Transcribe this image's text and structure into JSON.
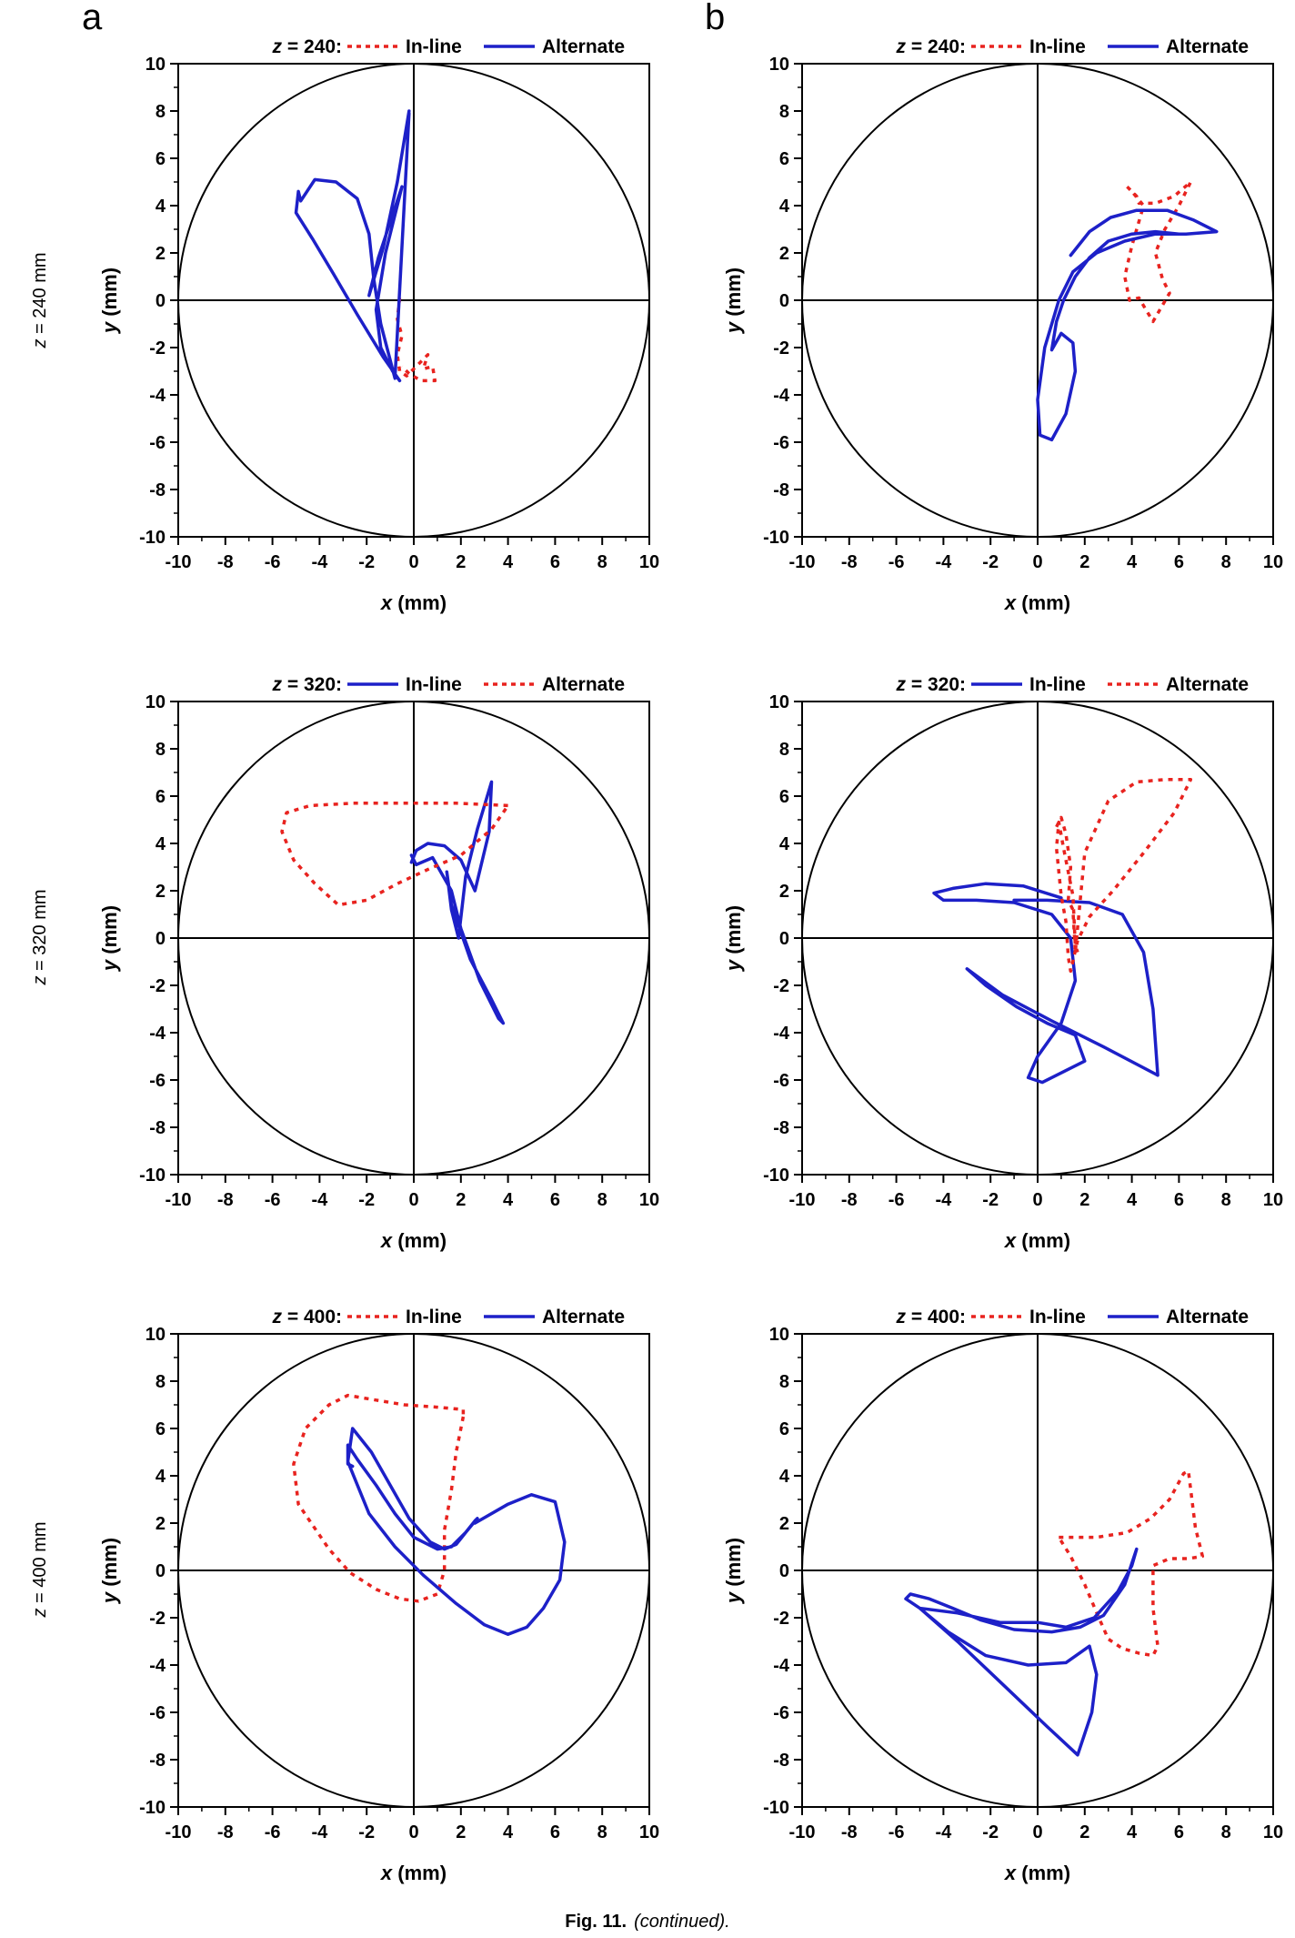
{
  "panel_letters": [
    "a",
    "b"
  ],
  "row_labels": [
    {
      "var": "z",
      "rest": " = 240 mm"
    },
    {
      "var": "z",
      "rest": " = 320 mm"
    },
    {
      "var": "z",
      "rest": " = 400 mm"
    }
  ],
  "caption": {
    "bold": "Fig. 11.",
    "italic": "(continued)."
  },
  "colors": {
    "inline_dotted": "#e8231f",
    "alternate_solid": "#1d20c8",
    "axes": "#000000"
  },
  "chart_data": [
    {
      "type": "line",
      "column": "a",
      "legend": {
        "prefix_var": "z",
        "prefix_rest": " = 240:",
        "entries": [
          {
            "label": "In-line",
            "style": "dotted",
            "color": "#e8231f"
          },
          {
            "label": "Alternate",
            "style": "solid",
            "color": "#1d20c8"
          }
        ]
      },
      "xlabel": {
        "var": "x",
        "unit": " (mm)"
      },
      "ylabel": {
        "var": "y",
        "unit": " (mm)"
      },
      "xlim": [
        -10,
        10
      ],
      "ylim": [
        -10,
        10
      ],
      "xticks": [
        "-10",
        "-8",
        "-6",
        "-4",
        "-2",
        "0",
        "2",
        "4",
        "6",
        "8",
        "10"
      ],
      "yticks": [
        "-10",
        "-8",
        "-6",
        "-4",
        "-2",
        "0",
        "2",
        "4",
        "6",
        "8",
        "10"
      ],
      "boundary_circle_radius": 10,
      "series": [
        {
          "name": "In-line",
          "style": "dotted",
          "color": "#e8231f",
          "x": [
            -0.6,
            -0.7,
            -0.5,
            -0.7,
            -0.6,
            -0.3,
            0.2,
            0.6,
            0.4,
            0.8,
            0.9,
            0.3,
            -0.2,
            -0.5
          ],
          "y": [
            0.1,
            -0.8,
            -1.5,
            -2.3,
            -3.0,
            -3.2,
            -2.7,
            -2.3,
            -2.9,
            -2.8,
            -3.4,
            -3.4,
            -3.1,
            -2.8
          ]
        },
        {
          "name": "Alternate",
          "style": "solid",
          "color": "#1d20c8",
          "x": [
            -0.2,
            -0.7,
            -1.3,
            -1.9,
            -1.5,
            -0.5,
            -1.2,
            -1.6,
            -1.4,
            -0.9,
            -0.6,
            -1.3,
            -2.4,
            -3.4,
            -4.3,
            -5.0,
            -4.9,
            -4.8,
            -4.2,
            -3.3,
            -2.4,
            -1.9,
            -1.7,
            -1.4,
            -0.8,
            -0.2
          ],
          "y": [
            8.0,
            5.0,
            2.2,
            0.2,
            1.8,
            4.8,
            2.0,
            -0.4,
            -2.0,
            -3.0,
            -3.4,
            -2.4,
            -0.6,
            1.1,
            2.6,
            3.7,
            4.6,
            4.2,
            5.1,
            5.0,
            4.3,
            2.8,
            0.9,
            -1.0,
            -3.3,
            7.9
          ]
        }
      ]
    },
    {
      "type": "line",
      "column": "b",
      "legend": {
        "prefix_var": "z",
        "prefix_rest": " = 240:",
        "entries": [
          {
            "label": "In-line",
            "style": "dotted",
            "color": "#e8231f"
          },
          {
            "label": "Alternate",
            "style": "solid",
            "color": "#1d20c8"
          }
        ]
      },
      "xlabel": {
        "var": "x",
        "unit": " (mm)"
      },
      "ylabel": {
        "var": "y",
        "unit": " (mm)"
      },
      "xlim": [
        -10,
        10
      ],
      "ylim": [
        -10,
        10
      ],
      "xticks": [
        "-10",
        "-8",
        "-6",
        "-4",
        "-2",
        "0",
        "2",
        "4",
        "6",
        "8",
        "10"
      ],
      "yticks": [
        "-10",
        "-8",
        "-6",
        "-4",
        "-2",
        "0",
        "2",
        "4",
        "6",
        "8",
        "10"
      ],
      "boundary_circle_radius": 10,
      "series": [
        {
          "name": "In-line",
          "style": "dotted",
          "color": "#e8231f",
          "x": [
            3.8,
            4.2,
            4.3,
            5.0,
            5.8,
            6.5,
            6.0,
            5.4,
            5.0,
            5.3,
            5.6,
            4.9,
            4.6,
            4.3,
            3.9,
            3.7,
            4.0,
            4.5,
            4.0
          ],
          "y": [
            4.8,
            4.4,
            4.1,
            4.1,
            4.4,
            5.0,
            4.0,
            3.0,
            2.0,
            0.9,
            0.3,
            -0.9,
            -0.4,
            0.1,
            0.0,
            1.0,
            2.3,
            4.0,
            4.6
          ]
        },
        {
          "name": "Alternate",
          "style": "solid",
          "color": "#1d20c8",
          "x": [
            1.4,
            2.2,
            3.1,
            4.2,
            5.5,
            6.6,
            7.6,
            6.3,
            5.0,
            3.7,
            2.5,
            1.5,
            0.9,
            0.3,
            0.0,
            0.1,
            0.6,
            1.2,
            1.6,
            1.5,
            1.0,
            0.6,
            0.8,
            1.1,
            1.6,
            2.2,
            3.0,
            4.0,
            5.0,
            6.0
          ],
          "y": [
            1.9,
            2.9,
            3.5,
            3.8,
            3.8,
            3.4,
            2.9,
            2.8,
            2.8,
            2.5,
            2.0,
            1.2,
            0.0,
            -2.0,
            -4.2,
            -5.7,
            -5.9,
            -4.8,
            -3.0,
            -1.8,
            -1.4,
            -2.1,
            -0.9,
            0.0,
            1.0,
            1.8,
            2.5,
            2.8,
            2.9,
            2.8
          ]
        }
      ]
    },
    {
      "type": "line",
      "column": "a",
      "legend": {
        "prefix_var": "z",
        "prefix_rest": " = 320:",
        "entries": [
          {
            "label": "In-line",
            "style": "solid",
            "color": "#1d20c8"
          },
          {
            "label": "Alternate",
            "style": "dotted",
            "color": "#e8231f"
          }
        ]
      },
      "xlabel": {
        "var": "x",
        "unit": " (mm)"
      },
      "ylabel": {
        "var": "y",
        "unit": " (mm)"
      },
      "xlim": [
        -10,
        10
      ],
      "ylim": [
        -10,
        10
      ],
      "xticks": [
        "-10",
        "-8",
        "-6",
        "-4",
        "-2",
        "0",
        "2",
        "4",
        "6",
        "8",
        "10"
      ],
      "yticks": [
        "-10",
        "-8",
        "-6",
        "-4",
        "-2",
        "0",
        "2",
        "4",
        "6",
        "8",
        "10"
      ],
      "boundary_circle_radius": 10,
      "series": [
        {
          "name": "In-line",
          "style": "solid",
          "color": "#1d20c8",
          "x": [
            -0.1,
            0.1,
            0.6,
            1.3,
            2.0,
            2.6,
            3.2,
            3.3,
            2.7,
            2.2,
            1.9,
            1.6,
            1.4,
            1.6,
            2.4,
            3.3,
            3.8,
            3.6,
            2.8,
            2.0,
            1.6,
            0.8,
            0.1,
            -0.1
          ],
          "y": [
            3.2,
            3.7,
            4.0,
            3.9,
            3.3,
            2.0,
            4.5,
            6.6,
            4.6,
            2.6,
            0.0,
            1.2,
            2.8,
            1.4,
            -0.9,
            -2.6,
            -3.6,
            -3.4,
            -1.8,
            0.4,
            2.0,
            3.4,
            3.1,
            3.5
          ]
        },
        {
          "name": "Alternate",
          "style": "dotted",
          "color": "#e8231f",
          "x": [
            4.0,
            1.8,
            -0.4,
            -2.6,
            -4.4,
            -5.4,
            -5.6,
            -5.1,
            -4.2,
            -3.2,
            -2.0,
            -0.7,
            0.6,
            2.0,
            3.3,
            4.0
          ],
          "y": [
            5.6,
            5.7,
            5.7,
            5.7,
            5.6,
            5.3,
            4.5,
            3.3,
            2.3,
            1.4,
            1.6,
            2.3,
            2.9,
            3.5,
            4.6,
            5.6
          ]
        }
      ]
    },
    {
      "type": "line",
      "column": "b",
      "legend": {
        "prefix_var": "z",
        "prefix_rest": " = 320:",
        "entries": [
          {
            "label": "In-line",
            "style": "solid",
            "color": "#1d20c8"
          },
          {
            "label": "Alternate",
            "style": "dotted",
            "color": "#e8231f"
          }
        ]
      },
      "xlabel": {
        "var": "x",
        "unit": " (mm)"
      },
      "ylabel": {
        "var": "y",
        "unit": " (mm)"
      },
      "xlim": [
        -10,
        10
      ],
      "ylim": [
        -10,
        10
      ],
      "xticks": [
        "-10",
        "-8",
        "-6",
        "-4",
        "-2",
        "0",
        "2",
        "4",
        "6",
        "8",
        "10"
      ],
      "yticks": [
        "-10",
        "-8",
        "-6",
        "-4",
        "-2",
        "0",
        "2",
        "4",
        "6",
        "8",
        "10"
      ],
      "boundary_circle_radius": 10,
      "series": [
        {
          "name": "In-line",
          "style": "solid",
          "color": "#1d20c8",
          "x": [
            1.0,
            -0.6,
            -2.2,
            -3.6,
            -4.4,
            -4.0,
            -2.6,
            -1.0,
            0.6,
            1.4,
            1.6,
            1.0,
            0.0,
            -0.4,
            0.2,
            1.2,
            2.0,
            1.6,
            0.4,
            -0.9,
            -2.2,
            -3.0,
            -1.5,
            0.6,
            2.8,
            5.1,
            4.9,
            4.5,
            3.6,
            2.2,
            0.4,
            -1.0
          ],
          "y": [
            1.7,
            2.2,
            2.3,
            2.1,
            1.9,
            1.6,
            1.6,
            1.5,
            1.0,
            0.0,
            -1.8,
            -3.6,
            -5.0,
            -5.9,
            -6.1,
            -5.6,
            -5.2,
            -4.1,
            -3.6,
            -2.9,
            -2.0,
            -1.3,
            -2.4,
            -3.5,
            -4.6,
            -5.8,
            -3.0,
            -0.6,
            1.0,
            1.5,
            1.6,
            1.6
          ]
        },
        {
          "name": "Alternate",
          "style": "dotted",
          "color": "#e8231f",
          "x": [
            0.8,
            1.0,
            1.2,
            1.4,
            1.3,
            1.5,
            1.6,
            2.0,
            3.0,
            4.2,
            5.4,
            6.5,
            5.8,
            4.5,
            3.2,
            2.2,
            1.7,
            1.4,
            1.3,
            1.2,
            1.0,
            0.8,
            0.9,
            1.1,
            1.5,
            1.6,
            1.7
          ],
          "y": [
            4.7,
            5.1,
            4.4,
            3.0,
            1.6,
            1.2,
            -0.6,
            3.6,
            5.8,
            6.6,
            6.7,
            6.7,
            5.3,
            3.6,
            2.0,
            0.9,
            -0.1,
            -1.4,
            -0.8,
            0.7,
            1.8,
            3.8,
            4.9,
            3.8,
            1.8,
            -0.3,
            -0.6
          ]
        }
      ]
    },
    {
      "type": "line",
      "column": "a",
      "legend": {
        "prefix_var": "z",
        "prefix_rest": " = 400:",
        "entries": [
          {
            "label": "In-line",
            "style": "dotted",
            "color": "#e8231f"
          },
          {
            "label": "Alternate",
            "style": "solid",
            "color": "#1d20c8"
          }
        ]
      },
      "xlabel": {
        "var": "x",
        "unit": " (mm)"
      },
      "ylabel": {
        "var": "y",
        "unit": " (mm)"
      },
      "xlim": [
        -10,
        10
      ],
      "ylim": [
        -10,
        10
      ],
      "xticks": [
        "-10",
        "-8",
        "-6",
        "-4",
        "-2",
        "0",
        "2",
        "4",
        "6",
        "8",
        "10"
      ],
      "yticks": [
        "-10",
        "-8",
        "-6",
        "-4",
        "-2",
        "0",
        "2",
        "4",
        "6",
        "8",
        "10"
      ],
      "boundary_circle_radius": 10,
      "series": [
        {
          "name": "In-line",
          "style": "dotted",
          "color": "#e8231f",
          "x": [
            2.1,
            1.8,
            1.6,
            1.3,
            1.3,
            1.0,
            0.2,
            -0.6,
            -1.6,
            -2.7,
            -3.6,
            -4.9,
            -5.1,
            -4.6,
            -3.6,
            -2.8,
            -1.6,
            -0.4,
            1.0,
            2.1,
            2.1
          ],
          "y": [
            6.5,
            5.0,
            3.4,
            1.7,
            0.0,
            -1.0,
            -1.3,
            -1.2,
            -0.8,
            -0.1,
            0.9,
            2.8,
            4.5,
            6.0,
            7.0,
            7.4,
            7.2,
            7.0,
            6.9,
            6.8,
            6.5
          ]
        },
        {
          "name": "Alternate",
          "style": "solid",
          "color": "#1d20c8",
          "x": [
            2.6,
            4.0,
            5.0,
            6.0,
            6.4,
            6.2,
            5.5,
            4.8,
            4.0,
            3.0,
            1.8,
            0.4,
            -0.8,
            -1.9,
            -2.8,
            -2.6,
            -1.8,
            -1.0,
            -0.2,
            0.7,
            1.3,
            1.8,
            2.2,
            2.6,
            2.7,
            2.2,
            1.6,
            1.0,
            0.0,
            -0.8,
            -1.6,
            -2.4,
            -2.8,
            -2.8,
            -2.6
          ],
          "y": [
            2.0,
            2.8,
            3.2,
            2.9,
            1.2,
            -0.4,
            -1.6,
            -2.4,
            -2.7,
            -2.3,
            -1.4,
            -0.2,
            1.0,
            2.4,
            4.6,
            6.0,
            5.0,
            3.6,
            2.2,
            1.2,
            0.9,
            1.1,
            1.6,
            2.1,
            2.2,
            1.6,
            1.0,
            0.9,
            1.4,
            2.4,
            3.6,
            4.7,
            5.3,
            4.5,
            4.4
          ]
        }
      ]
    },
    {
      "type": "line",
      "column": "b",
      "legend": {
        "prefix_var": "z",
        "prefix_rest": " = 400:",
        "entries": [
          {
            "label": "In-line",
            "style": "dotted",
            "color": "#e8231f"
          },
          {
            "label": "Alternate",
            "style": "solid",
            "color": "#1d20c8"
          }
        ]
      },
      "xlabel": {
        "var": "x",
        "unit": " (mm)"
      },
      "ylabel": {
        "var": "y",
        "unit": " (mm)"
      },
      "xlim": [
        -10,
        10
      ],
      "ylim": [
        -10,
        10
      ],
      "xticks": [
        "-10",
        "-8",
        "-6",
        "-4",
        "-2",
        "0",
        "2",
        "4",
        "6",
        "8",
        "10"
      ],
      "yticks": [
        "-10",
        "-8",
        "-6",
        "-4",
        "-2",
        "0",
        "2",
        "4",
        "6",
        "8",
        "10"
      ],
      "boundary_circle_radius": 10,
      "series": [
        {
          "name": "In-line",
          "style": "dotted",
          "color": "#e8231f",
          "x": [
            0.9,
            2.5,
            3.8,
            4.8,
            5.6,
            6.2,
            6.4,
            6.7,
            7.0,
            6.4,
            5.6,
            4.9,
            4.9,
            5.1,
            4.9,
            4.3,
            3.6,
            3.0,
            2.6,
            2.0,
            1.4,
            0.9
          ],
          "y": [
            1.4,
            1.4,
            1.6,
            2.2,
            3.0,
            4.1,
            4.2,
            1.8,
            0.6,
            0.5,
            0.5,
            0.2,
            -1.6,
            -3.2,
            -3.6,
            -3.5,
            -3.3,
            -2.9,
            -2.0,
            -0.6,
            0.6,
            1.4
          ]
        },
        {
          "name": "Alternate",
          "style": "solid",
          "color": "#1d20c8",
          "x": [
            4.2,
            3.7,
            2.8,
            1.8,
            0.6,
            -1.0,
            -2.4,
            -3.6,
            -4.6,
            -5.4,
            -5.6,
            -5.0,
            -3.8,
            -2.2,
            -0.4,
            1.2,
            2.2,
            2.5,
            2.3,
            1.7,
            0.4,
            -1.5,
            -3.4,
            -5.0,
            -3.4,
            -1.6,
            0.0,
            1.2,
            2.4,
            3.4,
            4.0,
            4.2
          ],
          "y": [
            0.9,
            -0.6,
            -1.9,
            -2.4,
            -2.6,
            -2.5,
            -2.1,
            -1.6,
            -1.2,
            -1.0,
            -1.2,
            -1.6,
            -2.6,
            -3.6,
            -4.0,
            -3.9,
            -3.2,
            -4.4,
            -6.0,
            -7.8,
            -6.6,
            -4.8,
            -3.0,
            -1.6,
            -1.8,
            -2.2,
            -2.2,
            -2.4,
            -2.0,
            -0.9,
            0.2,
            0.9
          ]
        }
      ]
    }
  ]
}
